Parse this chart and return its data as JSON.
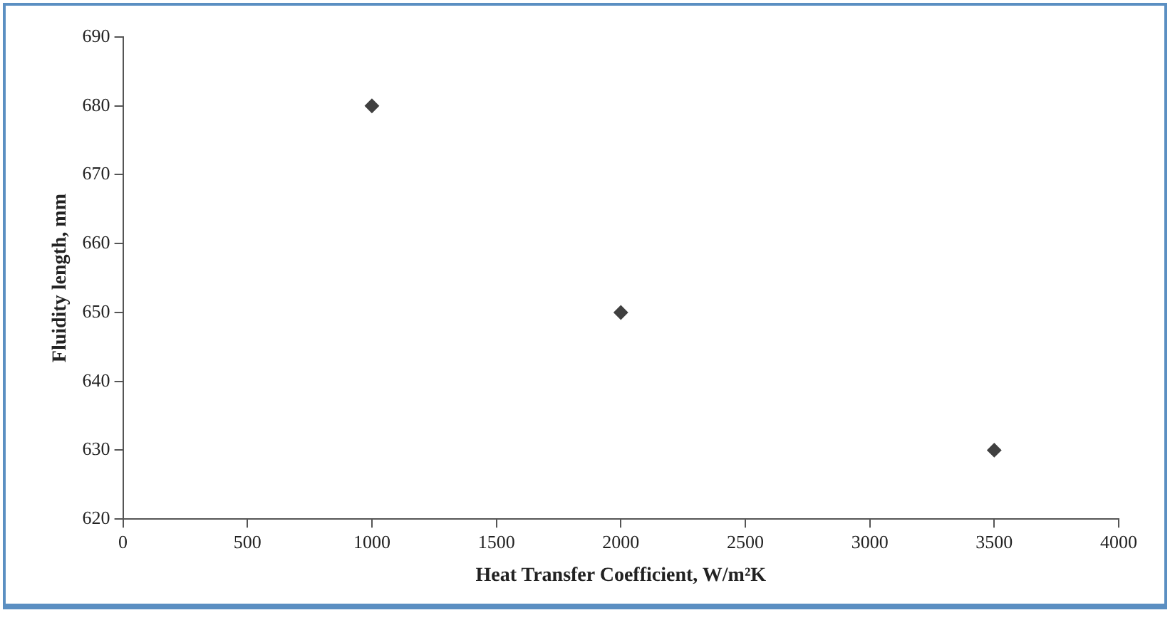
{
  "chart_data": {
    "type": "scatter",
    "xlabel": "Heat Transfer Coefficient, W/m²K",
    "ylabel": "Fluidity length, mm",
    "x": [
      1000,
      2000,
      3500
    ],
    "series": [
      {
        "color": "#404040",
        "values": [
          680,
          650,
          630
        ]
      }
    ],
    "xlim": [
      0,
      4000
    ],
    "xticks": [
      0,
      500,
      1000,
      1500,
      2000,
      2500,
      3000,
      3500,
      4000
    ],
    "ylim": [
      620,
      690
    ],
    "yticks": [
      620,
      630,
      640,
      650,
      660,
      670,
      680,
      690
    ],
    "grid": false,
    "legend": false,
    "marker": "diamond"
  }
}
